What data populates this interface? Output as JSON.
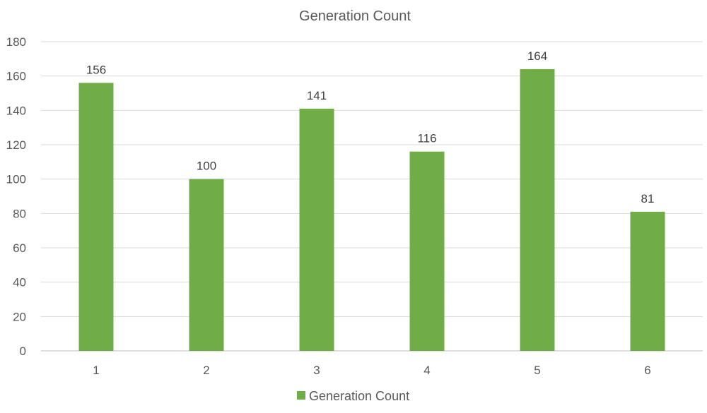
{
  "chart_data": {
    "type": "bar",
    "title": "Generation Count",
    "categories": [
      "1",
      "2",
      "3",
      "4",
      "5",
      "6"
    ],
    "series": [
      {
        "name": "Generation Count",
        "values": [
          156,
          100,
          141,
          116,
          164,
          81
        ],
        "color": "#70ad47"
      }
    ],
    "xlabel": "",
    "ylabel": "",
    "ylim": [
      0,
      180
    ],
    "yticks": [
      "0",
      "20",
      "40",
      "60",
      "80",
      "100",
      "120",
      "140",
      "160",
      "180"
    ],
    "grid": true,
    "data_labels": [
      "156",
      "100",
      "141",
      "116",
      "164",
      "81"
    ],
    "legend": {
      "position": "bottom",
      "entries": [
        "Generation Count"
      ]
    },
    "colors": {
      "grid": "#d9d9d9",
      "axis": "#bfbfbf"
    }
  }
}
